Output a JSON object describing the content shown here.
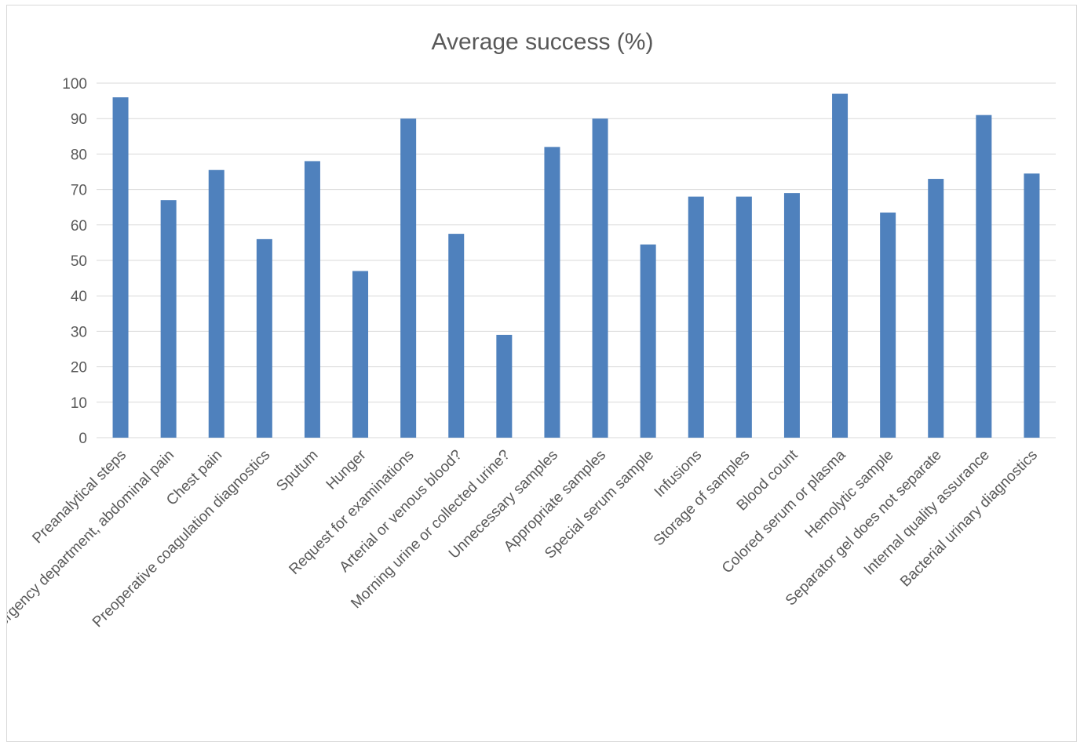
{
  "chart_data": {
    "type": "bar",
    "title": "Average success (%)",
    "xlabel": "",
    "ylabel": "",
    "ylim": [
      0,
      100
    ],
    "yticks": [
      0,
      10,
      20,
      30,
      40,
      50,
      60,
      70,
      80,
      90,
      100
    ],
    "grid": true,
    "legend": "none",
    "bar_color": "#4f81bd",
    "grid_color": "#d9d9d9",
    "categories": [
      "Preanalytical steps",
      "Emergency department, abdominal pain",
      "Chest pain",
      "Preoperative coagulation diagnostics",
      "Sputum",
      "Hunger",
      "Request for examinations",
      "Arterial or venous blood?",
      "Morning urine or collected urine?",
      "Unnecessary samples",
      "Appropriate samples",
      "Special serum sample",
      "Infusions",
      "Storage of samples",
      "Blood count",
      "Colored serum or plasma",
      "Hemolytic sample",
      "Separator gel does not separate",
      "Internal quality assurance",
      "Bacterial urinary diagnostics"
    ],
    "values": [
      96,
      67,
      75.5,
      56,
      78,
      47,
      90,
      57.5,
      29,
      82,
      90,
      54.5,
      68,
      68,
      69,
      97,
      63.5,
      73,
      91,
      74.5
    ]
  }
}
